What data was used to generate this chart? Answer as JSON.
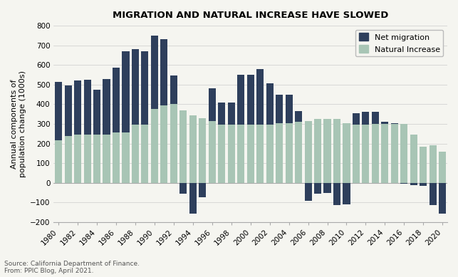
{
  "years": [
    1980,
    1981,
    1982,
    1983,
    1984,
    1985,
    1986,
    1987,
    1988,
    1989,
    1990,
    1991,
    1992,
    1993,
    1994,
    1995,
    1996,
    1997,
    1998,
    1999,
    2000,
    2001,
    2002,
    2003,
    2004,
    2005,
    2006,
    2007,
    2008,
    2009,
    2010,
    2011,
    2012,
    2013,
    2014,
    2015,
    2016,
    2017,
    2018,
    2019,
    2020
  ],
  "net_migration": [
    300,
    255,
    275,
    280,
    230,
    285,
    330,
    415,
    385,
    375,
    375,
    335,
    145,
    -55,
    -155,
    -75,
    165,
    115,
    115,
    255,
    255,
    285,
    210,
    145,
    145,
    55,
    -90,
    -55,
    -50,
    -115,
    -110,
    60,
    65,
    60,
    10,
    5,
    -5,
    -10,
    -15,
    -115,
    -155
  ],
  "natural_increase": [
    215,
    240,
    245,
    245,
    245,
    245,
    255,
    255,
    295,
    295,
    375,
    395,
    400,
    370,
    345,
    330,
    315,
    295,
    295,
    295,
    295,
    295,
    295,
    305,
    305,
    310,
    315,
    325,
    325,
    325,
    305,
    295,
    295,
    300,
    300,
    300,
    300,
    245,
    185,
    190,
    160
  ],
  "net_migration_color": "#2e3f5c",
  "natural_increase_color": "#a8c5b5",
  "title": "MIGRATION AND NATURAL INCREASE HAVE SLOWED",
  "ylabel": "Annual components of\npopulation change (1000s)",
  "ylim": [
    -200,
    800
  ],
  "yticks": [
    -200,
    -100,
    0,
    100,
    200,
    300,
    400,
    500,
    600,
    700,
    800
  ],
  "source_text": "Source: California Department of Finance.\nFrom: PPIC Blog, April 2021.",
  "legend_labels": [
    "Net migration",
    "Natural Increase"
  ],
  "background_color": "#f5f5f0",
  "border_color": "#cccccc"
}
